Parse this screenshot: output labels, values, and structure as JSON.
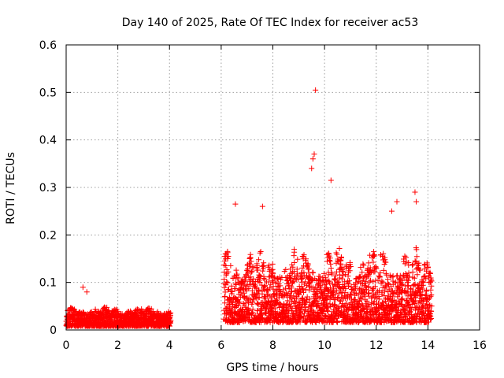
{
  "chart_data": {
    "type": "scatter",
    "title": "Day 140 of 2025, Rate Of TEC Index for receiver ac53",
    "xlabel": "GPS time / hours",
    "ylabel": "ROTI / TECUs",
    "xlim": [
      0,
      16
    ],
    "ylim": [
      0,
      0.6
    ],
    "xticks": [
      0,
      2,
      4,
      6,
      8,
      10,
      12,
      14,
      16
    ],
    "xtick_labels": [
      "0",
      "2",
      "4",
      "6",
      "8",
      "10",
      "12",
      "14",
      "16"
    ],
    "yticks": [
      0,
      0.1,
      0.2,
      0.3,
      0.4,
      0.5,
      0.6
    ],
    "ytick_labels": [
      "0",
      "0.1",
      "0.2",
      "0.3",
      "0.4",
      "0.5",
      "0.6"
    ],
    "grid": true,
    "marker": "+",
    "marker_color": "#ff0000",
    "series": [
      {
        "name": "ROTI",
        "segments": [
          {
            "x_range": [
              0.0,
              4.05
            ],
            "baseline": 0.02,
            "typical_max": 0.05,
            "peak": 0.09
          },
          {
            "x_range": [
              6.1,
              14.15
            ],
            "baseline": 0.04,
            "typical_max": 0.18,
            "peak": 0.505
          }
        ],
        "notable_points": [
          {
            "x": 9.65,
            "y": 0.505
          },
          {
            "x": 9.6,
            "y": 0.37
          },
          {
            "x": 9.55,
            "y": 0.36
          },
          {
            "x": 9.5,
            "y": 0.34
          },
          {
            "x": 10.25,
            "y": 0.315
          },
          {
            "x": 13.5,
            "y": 0.29
          },
          {
            "x": 13.55,
            "y": 0.27
          },
          {
            "x": 12.8,
            "y": 0.27
          },
          {
            "x": 6.55,
            "y": 0.265
          },
          {
            "x": 7.6,
            "y": 0.26
          },
          {
            "x": 12.6,
            "y": 0.25
          },
          {
            "x": 0.65,
            "y": 0.09
          },
          {
            "x": 0.8,
            "y": 0.08
          }
        ]
      }
    ]
  }
}
